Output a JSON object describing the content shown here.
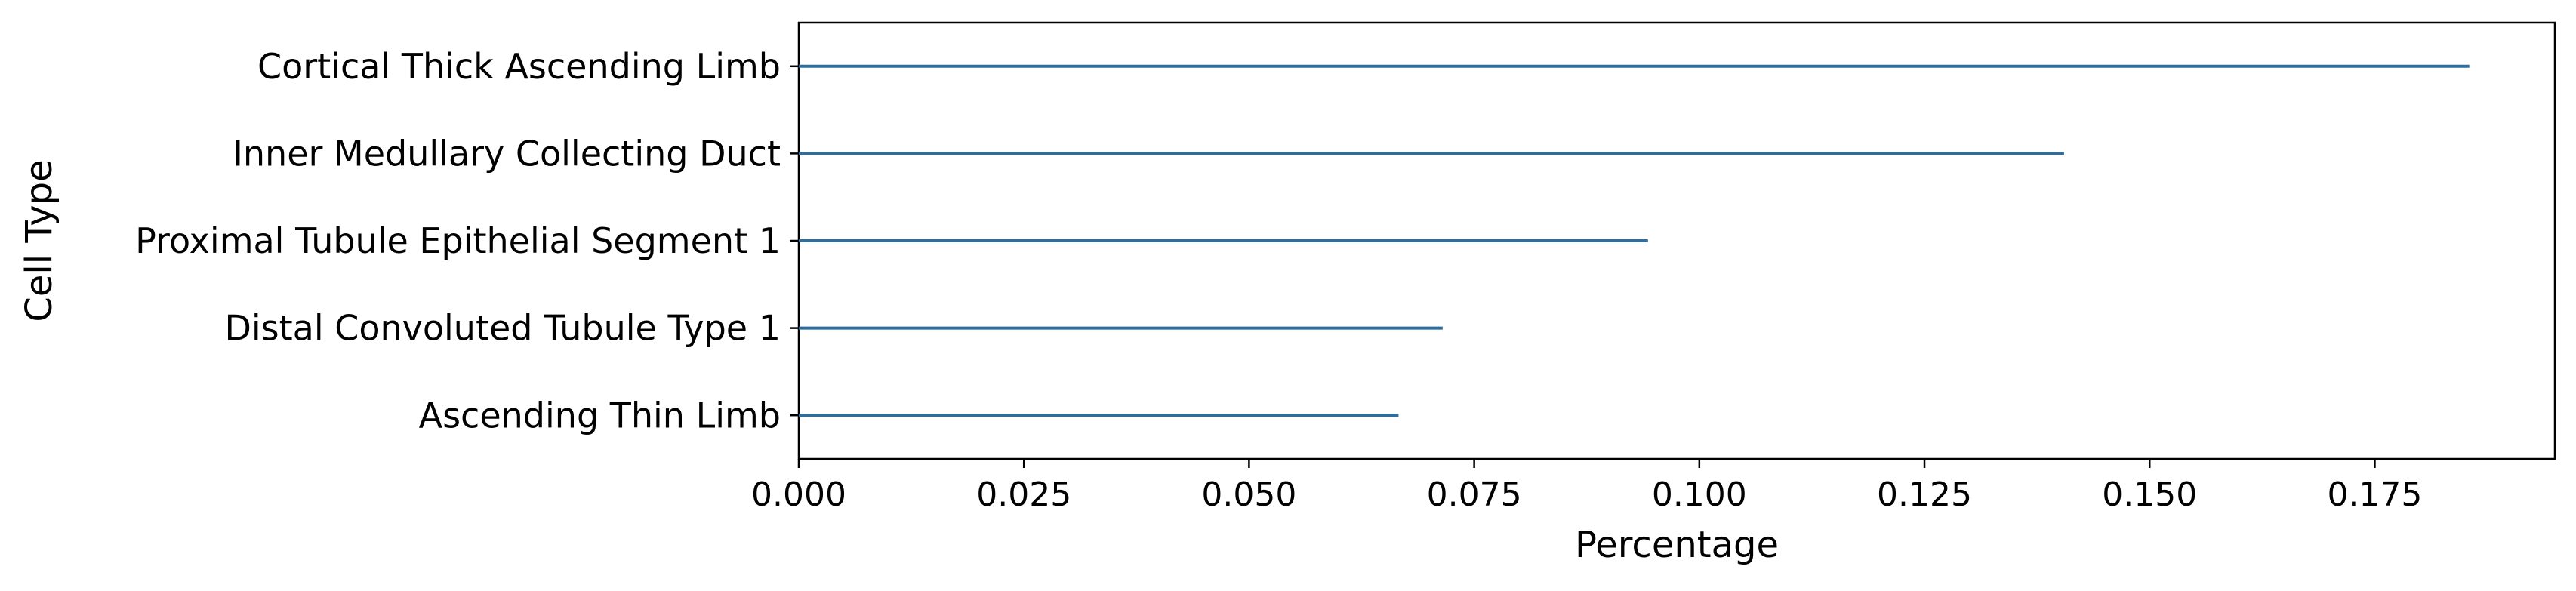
{
  "chart_data": {
    "type": "bar",
    "orientation": "horizontal",
    "categories": [
      "Cortical Thick Ascending Limb",
      "Inner Medullary Collecting Duct",
      "Proximal Tubule Epithelial Segment 1",
      "Distal Convoluted Tubule Type 1",
      "Ascending Thin Limb"
    ],
    "values": [
      0.1855,
      0.1405,
      0.0943,
      0.0715,
      0.0666
    ],
    "xlabel": "Percentage",
    "ylabel": "Cell Type",
    "xlim": [
      0,
      0.195
    ],
    "xticks": [
      "0.000",
      "0.025",
      "0.050",
      "0.075",
      "0.100",
      "0.125",
      "0.150",
      "0.175"
    ],
    "grid": false,
    "color": "#2f6e9c"
  }
}
